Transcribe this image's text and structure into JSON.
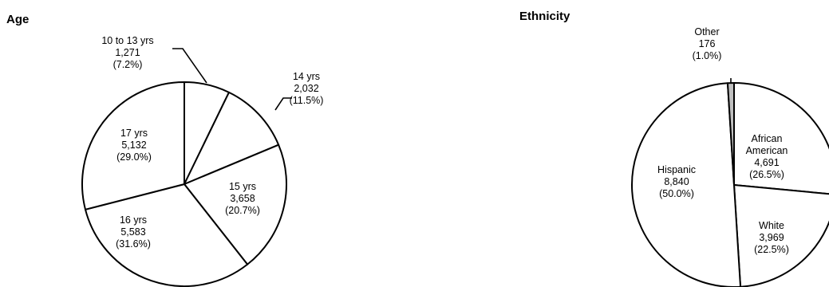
{
  "chart_data": [
    {
      "type": "pie",
      "title": "Age",
      "slices": [
        {
          "label": "10 to 13 yrs",
          "count": "1,271",
          "percent": "(7.2%)",
          "value": 7.2
        },
        {
          "label": "14 yrs",
          "count": "2,032",
          "percent": "(11.5%)",
          "value": 11.5
        },
        {
          "label": "15 yrs",
          "count": "3,658",
          "percent": "(20.7%)",
          "value": 20.7
        },
        {
          "label": "16 yrs",
          "count": "5,583",
          "percent": "(31.6%)",
          "value": 31.6
        },
        {
          "label": "17 yrs",
          "count": "5,132",
          "percent": "(29.0%)",
          "value": 29.0
        }
      ],
      "colors": [
        "#ffffff",
        "#ffffff",
        "#ffffff",
        "#ffffff",
        "#ffffff"
      ]
    },
    {
      "type": "pie",
      "title": "Ethnicity",
      "slices": [
        {
          "label": "African American",
          "count": "4,691",
          "percent": "(26.5%)",
          "value": 26.5
        },
        {
          "label": "White",
          "count": "3,969",
          "percent": "(22.5%)",
          "value": 22.5
        },
        {
          "label": "Hispanic",
          "count": "8,840",
          "percent": "(50.0%)",
          "value": 50.0
        },
        {
          "label": "Other",
          "count": "176",
          "percent": "(1.0%)",
          "value": 1.0
        }
      ],
      "colors": [
        "#ffffff",
        "#ffffff",
        "#ffffff",
        "#c0c0c0"
      ]
    }
  ]
}
